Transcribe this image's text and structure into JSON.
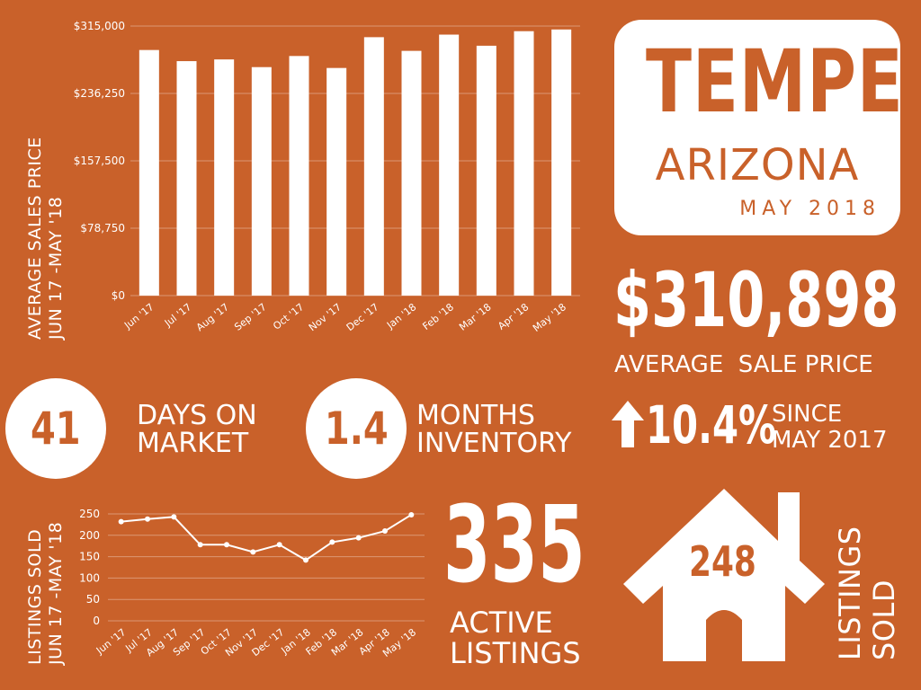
{
  "title_card": {
    "city": "TEMPE",
    "state": "ARIZONA",
    "date": "MAY 2018"
  },
  "avg_price": {
    "value": "$310,898",
    "label": "AVERAGE  SALE PRICE"
  },
  "change": {
    "value": "10.4%",
    "label_line1": "SINCE",
    "label_line2": "MAY 2017",
    "icon": "arrow-up-icon"
  },
  "days_on_market": {
    "value": "41",
    "label_line1": "DAYS ON",
    "label_line2": "MARKET"
  },
  "months_inventory": {
    "value": "1.4",
    "label_line1": "MONTHS",
    "label_line2": "INVENTORY"
  },
  "active_listings": {
    "value": "335",
    "label_line1": "ACTIVE",
    "label_line2": "LISTINGS"
  },
  "listings_sold_house": {
    "value": "248",
    "label_line1": "LISTINGS",
    "label_line2": "SOLD",
    "icon": "house-icon"
  },
  "chart_data": [
    {
      "type": "bar",
      "ylabel_line1": "AVERAGE SALES PRICE",
      "ylabel_line2": "JUN 17 -MAY '18",
      "categories": [
        "Jun '17",
        "Jul '17",
        "Aug '17",
        "Sep '17",
        "Oct '17",
        "Nov '17",
        "Dec '17",
        "Jan '18",
        "Feb '18",
        "Mar '18",
        "Apr '18",
        "May '18"
      ],
      "values": [
        287000,
        274000,
        276000,
        267000,
        280000,
        266000,
        302000,
        286000,
        305000,
        292000,
        309000,
        311000
      ],
      "yticks": [
        "$0",
        "$78,750",
        "$157,500",
        "$236,250",
        "$315,000"
      ],
      "ylim": [
        0,
        315000
      ],
      "grid": true
    },
    {
      "type": "line",
      "ylabel_line1": "LISTINGS SOLD",
      "ylabel_line2": "JUN 17 -MAY '18",
      "categories": [
        "Jun '17",
        "Jul '17",
        "Aug '17",
        "Sep '17",
        "Oct '17",
        "Nov '17",
        "Dec '17",
        "Jan '18",
        "Feb '18",
        "Mar '18",
        "Apr '18",
        "May '18"
      ],
      "values": [
        232,
        238,
        243,
        178,
        178,
        161,
        178,
        142,
        184,
        194,
        210,
        248
      ],
      "yticks": [
        "0",
        "50",
        "100",
        "150",
        "200",
        "250"
      ],
      "ylim": [
        0,
        250
      ],
      "grid": true
    }
  ]
}
